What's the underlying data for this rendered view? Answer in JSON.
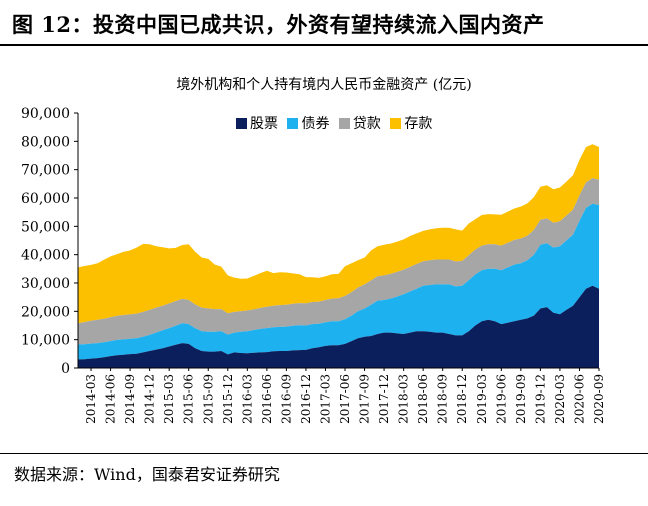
{
  "header": {
    "title": "图 12：投资中国已成共识，外资有望持续流入国内资产"
  },
  "footer": {
    "source": "数据来源：Wind，国泰君安证券研究"
  },
  "colors": {
    "stocks": "#0b1f5c",
    "bonds": "#1eb1f0",
    "loans": "#a6a6a6",
    "deposits": "#fcc000"
  },
  "chart_data": {
    "type": "area",
    "stacked": true,
    "title": "境外机构和个人持有境内人民币金融资产 (亿元)",
    "xlabel": "",
    "ylabel": "",
    "ylim": [
      0,
      90000
    ],
    "yticks": [
      "0",
      "10,000",
      "20,000",
      "30,000",
      "40,000",
      "50,000",
      "60,000",
      "70,000",
      "80,000",
      "90,000"
    ],
    "grid": false,
    "legend_position": "top-center",
    "x_tick_labels": [
      "2014-03",
      "2014-06",
      "2014-09",
      "2014-12",
      "2015-03",
      "2015-06",
      "2015-09",
      "2015-12",
      "2016-03",
      "2016-06",
      "2016-09",
      "2016-12",
      "2017-03",
      "2017-06",
      "2017-09",
      "2017-12",
      "2018-03",
      "2018-06",
      "2018-09",
      "2018-12",
      "2019-03",
      "2019-06",
      "2019-09",
      "2019-12",
      "2020-03",
      "2020-06",
      "2020-09"
    ],
    "categories": [
      "2014-01",
      "2014-02",
      "2014-03",
      "2014-04",
      "2014-05",
      "2014-06",
      "2014-07",
      "2014-08",
      "2014-09",
      "2014-10",
      "2014-11",
      "2014-12",
      "2015-01",
      "2015-02",
      "2015-03",
      "2015-04",
      "2015-05",
      "2015-06",
      "2015-07",
      "2015-08",
      "2015-09",
      "2015-10",
      "2015-11",
      "2015-12",
      "2016-01",
      "2016-02",
      "2016-03",
      "2016-04",
      "2016-05",
      "2016-06",
      "2016-07",
      "2016-08",
      "2016-09",
      "2016-10",
      "2016-11",
      "2016-12",
      "2017-01",
      "2017-02",
      "2017-03",
      "2017-04",
      "2017-05",
      "2017-06",
      "2017-07",
      "2017-08",
      "2017-09",
      "2017-10",
      "2017-11",
      "2017-12",
      "2018-01",
      "2018-02",
      "2018-03",
      "2018-04",
      "2018-05",
      "2018-06",
      "2018-07",
      "2018-08",
      "2018-09",
      "2018-10",
      "2018-11",
      "2018-12",
      "2019-01",
      "2019-02",
      "2019-03",
      "2019-04",
      "2019-05",
      "2019-06",
      "2019-07",
      "2019-08",
      "2019-09",
      "2019-10",
      "2019-11",
      "2019-12",
      "2020-01",
      "2020-02",
      "2020-03",
      "2020-04",
      "2020-05",
      "2020-06",
      "2020-07",
      "2020-08",
      "2020-09"
    ],
    "series": [
      {
        "name": "股票",
        "key": "stocks",
        "values": [
          3000,
          3100,
          3300,
          3500,
          3800,
          4200,
          4500,
          4700,
          4900,
          5000,
          5500,
          6000,
          6500,
          7000,
          7600,
          8200,
          8800,
          8500,
          7000,
          6000,
          5800,
          5800,
          6000,
          4800,
          5500,
          5300,
          5200,
          5400,
          5500,
          5600,
          5900,
          6000,
          6000,
          6200,
          6300,
          6400,
          7000,
          7300,
          7800,
          8000,
          8000,
          8500,
          9500,
          10500,
          11000,
          11300,
          12000,
          12500,
          12500,
          12200,
          12000,
          12500,
          13000,
          13000,
          12800,
          12500,
          12500,
          12000,
          11500,
          11500,
          13000,
          15000,
          16500,
          17000,
          16500,
          15500,
          16000,
          16500,
          17000,
          17500,
          18500,
          21000,
          21500,
          19500,
          19000,
          20500,
          22000,
          25000,
          28000,
          29000,
          28000
        ]
      },
      {
        "name": "债券",
        "key": "bonds",
        "values": [
          5300,
          5300,
          5300,
          5300,
          5300,
          5300,
          5400,
          5400,
          5400,
          5500,
          5500,
          5700,
          6000,
          6300,
          6500,
          6700,
          7000,
          7000,
          7000,
          7000,
          7000,
          7000,
          7000,
          7000,
          7000,
          7500,
          7800,
          8000,
          8300,
          8500,
          8500,
          8500,
          8600,
          8700,
          8800,
          8600,
          8500,
          8300,
          8300,
          8500,
          8500,
          8700,
          9000,
          9500,
          10000,
          11000,
          11800,
          11500,
          12000,
          13000,
          14000,
          14500,
          15000,
          16000,
          16500,
          17000,
          17000,
          17500,
          17300,
          17500,
          18000,
          18000,
          18000,
          18000,
          18500,
          19000,
          19500,
          20000,
          20000,
          20500,
          21500,
          22500,
          22500,
          23000,
          24000,
          24500,
          25000,
          27000,
          28500,
          29000,
          29500
        ]
      },
      {
        "name": "贷款",
        "key": "loans",
        "values": [
          7500,
          7800,
          8100,
          8200,
          8300,
          8400,
          8500,
          8600,
          8600,
          8700,
          8800,
          8800,
          8800,
          8700,
          8700,
          8700,
          8600,
          8500,
          8400,
          8300,
          8200,
          8000,
          7800,
          7500,
          7300,
          7200,
          7300,
          7300,
          7400,
          7500,
          7600,
          7700,
          7700,
          7800,
          7800,
          7800,
          7800,
          7800,
          7900,
          8000,
          8100,
          8200,
          8300,
          8400,
          8500,
          8600,
          8600,
          8700,
          8700,
          8700,
          8700,
          8700,
          8700,
          8700,
          8700,
          8800,
          8800,
          8800,
          8800,
          8800,
          8800,
          8800,
          8700,
          8700,
          8700,
          8700,
          8700,
          8700,
          8700,
          8700,
          8700,
          8800,
          8800,
          8800,
          8800,
          8800,
          8900,
          9000,
          9000,
          9000,
          9000
        ]
      },
      {
        "name": "存款",
        "key": "deposits",
        "values": [
          19700,
          19800,
          19700,
          20000,
          20800,
          21500,
          21800,
          22300,
          22600,
          23300,
          24000,
          23200,
          21700,
          20600,
          19400,
          18800,
          19000,
          19700,
          18600,
          17700,
          17500,
          15700,
          15000,
          13400,
          12100,
          11500,
          11300,
          11800,
          12300,
          12700,
          11500,
          11600,
          11400,
          10700,
          10200,
          9300,
          8700,
          8400,
          8400,
          8600,
          8600,
          10500,
          10200,
          9600,
          9500,
          10600,
          10600,
          10800,
          10700,
          10700,
          10700,
          10900,
          10800,
          10700,
          10900,
          11000,
          11200,
          11200,
          11300,
          10700,
          11200,
          10700,
          10800,
          10600,
          10500,
          10900,
          11000,
          11100,
          11300,
          11400,
          11600,
          11700,
          11700,
          11800,
          11900,
          12000,
          12100,
          12500,
          12500,
          12000,
          11500
        ]
      }
    ]
  }
}
